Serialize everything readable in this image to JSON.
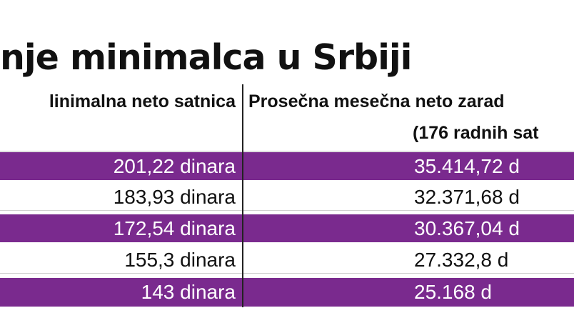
{
  "title": "nje minimalca u Srbiji",
  "columns": {
    "col1": "linimalna neto satnica",
    "col2": "Prosečna mesečna neto zarad",
    "col2_sub": "(176 radnih sat"
  },
  "rows": [
    {
      "satnica": "201,22 dinara",
      "zarada": "35.414,72 d",
      "style": "purple"
    },
    {
      "satnica": "183,93 dinara",
      "zarada": "32.371,68  d",
      "style": "white"
    },
    {
      "satnica": "172,54 dinara",
      "zarada": "30.367,04 d",
      "style": "purple"
    },
    {
      "satnica": "155,3 dinara",
      "zarada": "27.332,8 d",
      "style": "white"
    },
    {
      "satnica": "143 dinara",
      "zarada": "25.168 d",
      "style": "purple"
    }
  ],
  "colors": {
    "accent": "#7a2a8e"
  }
}
